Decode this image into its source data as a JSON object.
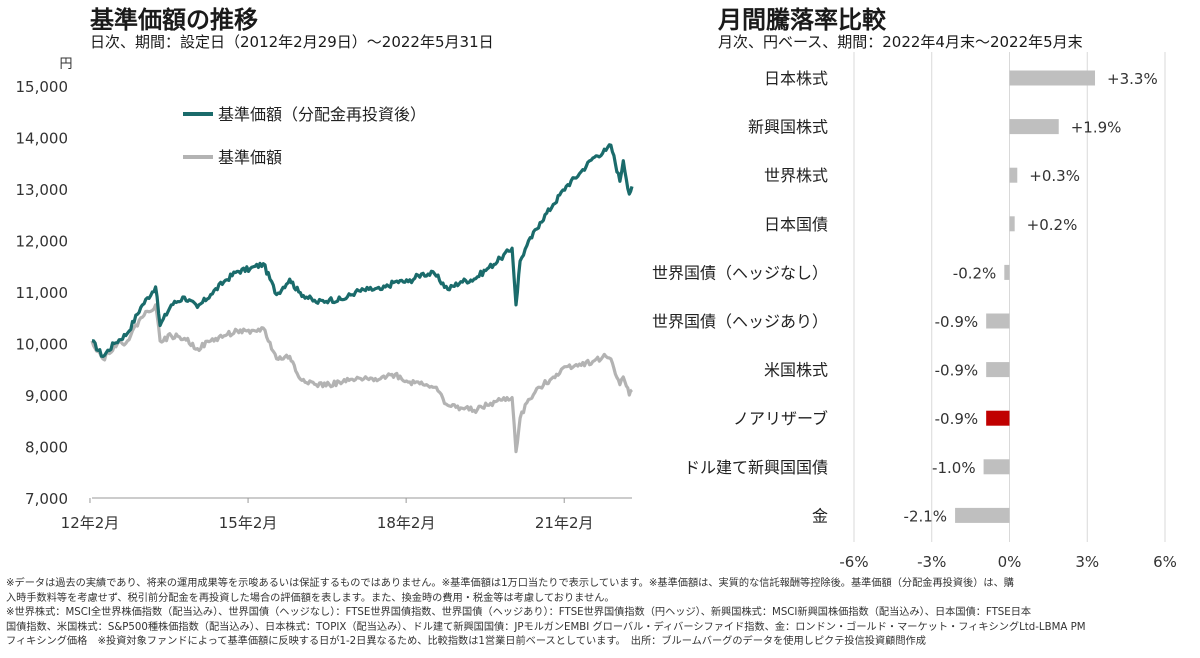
{
  "left_panel": {
    "title": "基準価額の推移",
    "subtitle": "日次、期間：設定日（2012年2月29日）～2022年5月31日"
  },
  "right_panel": {
    "title": "月間騰落率比較",
    "subtitle": "月次、円ベース、期間：2022年4月末～2022年5月末"
  },
  "chart_data": [
    {
      "type": "line",
      "ylabel": "円",
      "ylim": [
        7000,
        15000
      ],
      "yticks": [
        7000,
        8000,
        9000,
        10000,
        11000,
        12000,
        13000,
        14000,
        15000
      ],
      "ytick_labels": [
        "7,000",
        "8,000",
        "9,000",
        "10,000",
        "11,000",
        "12,000",
        "13,000",
        "14,000",
        "15,000"
      ],
      "xlim": [
        "2012-02-29",
        "2022-05-31"
      ],
      "xticks": [
        "2012-02",
        "2015-02",
        "2018-02",
        "2021-02"
      ],
      "xtick_labels": [
        "12年2月",
        "15年2月",
        "18年2月",
        "21年2月"
      ],
      "legend_position": "top-left",
      "grid": false,
      "series": [
        {
          "name": "基準価額（分配金再投資後）",
          "color": "#1a6b6b",
          "points": [
            [
              "2012-02-29",
              10050
            ],
            [
              "2012-05-15",
              9750
            ],
            [
              "2012-08-01",
              10000
            ],
            [
              "2012-11-01",
              10200
            ],
            [
              "2013-02-01",
              10700
            ],
            [
              "2013-05-15",
              11100
            ],
            [
              "2013-06-15",
              10350
            ],
            [
              "2013-09-01",
              10750
            ],
            [
              "2013-12-01",
              10900
            ],
            [
              "2014-03-01",
              10700
            ],
            [
              "2014-06-01",
              10950
            ],
            [
              "2014-09-01",
              11200
            ],
            [
              "2014-12-01",
              11400
            ],
            [
              "2015-03-01",
              11450
            ],
            [
              "2015-06-01",
              11550
            ],
            [
              "2015-09-01",
              10950
            ],
            [
              "2015-12-01",
              11250
            ],
            [
              "2016-02-01",
              11000
            ],
            [
              "2016-06-01",
              10800
            ],
            [
              "2016-09-01",
              10850
            ],
            [
              "2016-12-01",
              10850
            ],
            [
              "2017-03-01",
              11000
            ],
            [
              "2017-06-01",
              11050
            ],
            [
              "2017-09-01",
              11050
            ],
            [
              "2017-12-01",
              11200
            ],
            [
              "2018-03-01",
              11200
            ],
            [
              "2018-06-01",
              11350
            ],
            [
              "2018-09-01",
              11350
            ],
            [
              "2018-12-01",
              11050
            ],
            [
              "2019-03-01",
              11200
            ],
            [
              "2019-06-01",
              11250
            ],
            [
              "2019-09-01",
              11450
            ],
            [
              "2019-12-01",
              11650
            ],
            [
              "2020-02-20",
              11850
            ],
            [
              "2020-03-18",
              10750
            ],
            [
              "2020-04-15",
              11600
            ],
            [
              "2020-06-01",
              11900
            ],
            [
              "2020-09-01",
              12350
            ],
            [
              "2020-12-01",
              12700
            ],
            [
              "2021-03-01",
              13050
            ],
            [
              "2021-06-01",
              13300
            ],
            [
              "2021-09-01",
              13600
            ],
            [
              "2021-12-01",
              13750
            ],
            [
              "2022-01-05",
              13850
            ],
            [
              "2022-03-08",
              13150
            ],
            [
              "2022-04-01",
              13550
            ],
            [
              "2022-05-12",
              12900
            ],
            [
              "2022-05-31",
              13050
            ]
          ]
        },
        {
          "name": "基準価額",
          "color": "#b3b3b3",
          "points": [
            [
              "2012-02-29",
              10050
            ],
            [
              "2012-05-15",
              9700
            ],
            [
              "2012-08-01",
              9950
            ],
            [
              "2012-11-01",
              10050
            ],
            [
              "2013-02-01",
              10500
            ],
            [
              "2013-05-15",
              10750
            ],
            [
              "2013-06-15",
              10050
            ],
            [
              "2013-09-01",
              10150
            ],
            [
              "2013-12-01",
              10100
            ],
            [
              "2014-03-01",
              9900
            ],
            [
              "2014-06-01",
              10050
            ],
            [
              "2014-09-01",
              10150
            ],
            [
              "2014-12-01",
              10250
            ],
            [
              "2015-03-01",
              10200
            ],
            [
              "2015-06-01",
              10300
            ],
            [
              "2015-09-01",
              9700
            ],
            [
              "2015-12-01",
              9750
            ],
            [
              "2016-02-01",
              9350
            ],
            [
              "2016-06-01",
              9200
            ],
            [
              "2016-09-01",
              9200
            ],
            [
              "2016-12-01",
              9250
            ],
            [
              "2017-03-01",
              9300
            ],
            [
              "2017-06-01",
              9300
            ],
            [
              "2017-09-01",
              9350
            ],
            [
              "2017-12-01",
              9400
            ],
            [
              "2018-03-01",
              9250
            ],
            [
              "2018-06-01",
              9250
            ],
            [
              "2018-09-01",
              9150
            ],
            [
              "2018-12-01",
              8800
            ],
            [
              "2019-03-01",
              8750
            ],
            [
              "2019-06-01",
              8700
            ],
            [
              "2019-09-01",
              8800
            ],
            [
              "2019-12-01",
              8900
            ],
            [
              "2020-02-20",
              8950
            ],
            [
              "2020-03-18",
              7900
            ],
            [
              "2020-04-15",
              8550
            ],
            [
              "2020-06-01",
              8850
            ],
            [
              "2020-09-01",
              9150
            ],
            [
              "2020-12-01",
              9350
            ],
            [
              "2021-03-01",
              9550
            ],
            [
              "2021-06-01",
              9600
            ],
            [
              "2021-09-01",
              9650
            ],
            [
              "2021-12-01",
              9750
            ],
            [
              "2022-01-05",
              9700
            ],
            [
              "2022-03-08",
              9200
            ],
            [
              "2022-04-01",
              9350
            ],
            [
              "2022-05-12",
              9000
            ],
            [
              "2022-05-31",
              9100
            ]
          ]
        }
      ]
    },
    {
      "type": "bar",
      "orientation": "horizontal",
      "xlim": [
        -6,
        6
      ],
      "xticks": [
        -6,
        -3,
        0,
        3,
        6
      ],
      "xtick_labels": [
        "-6%",
        "-3%",
        "0%",
        "3%",
        "6%"
      ],
      "grid": true,
      "default_color": "#bfbfbf",
      "highlight_color": "#c00000",
      "categories": [
        "日本株式",
        "新興国株式",
        "世界株式",
        "日本国債",
        "世界国債（ヘッジなし）",
        "世界国債（ヘッジあり）",
        "米国株式",
        "ノアリザーブ",
        "ドル建て新興国国債",
        "金"
      ],
      "values": [
        3.3,
        1.9,
        0.3,
        0.2,
        -0.2,
        -0.9,
        -0.9,
        -0.9,
        -1.0,
        -2.1
      ],
      "value_labels": [
        "+3.3%",
        "+1.9%",
        "+0.3%",
        "+0.2%",
        "-0.2%",
        "-0.9%",
        "-0.9%",
        "-0.9%",
        "-1.0%",
        "-2.1%"
      ],
      "highlight_category": "ノアリザーブ"
    }
  ],
  "footnotes": [
    "※データは過去の実績であり、将来の運用成果等を示唆あるいは保証するものではありません。※基準価額は1万口当たりで表示しています。※基準価額は、実質的な信託報酬等控除後。基準価額（分配金再投資後）は、購",
    "入時手数料等を考慮せず、税引前分配金を再投資した場合の評価額を表します。また、換金時の費用・税金等は考慮しておりません。",
    "※世界株式：MSCI全世界株価指数（配当込み）、世界国債（ヘッジなし）：FTSE世界国債指数、世界国債（ヘッジあり）：FTSE世界国債指数（円ヘッジ）、新興国株式：MSCI新興国株価指数（配当込み）、日本国債：FTSE日本",
    "国債指数、米国株式：S&P500種株価指数（配当込み）、日本株式：TOPIX（配当込み）、ドル建て新興国国債：JPモルガンEMBI グローバル・ディバーシファイド指数、金：ロンドン・ゴールド・マーケット・フィキシングLtd-LBMA PM",
    "フィキシング価格　※投資対象ファンドによって基準価額に反映する日が1-2日異なるため、比較指数は1営業日前ベースとしています。　出所：ブルームバーグのデータを使用しピクテ投信投資顧問作成"
  ]
}
